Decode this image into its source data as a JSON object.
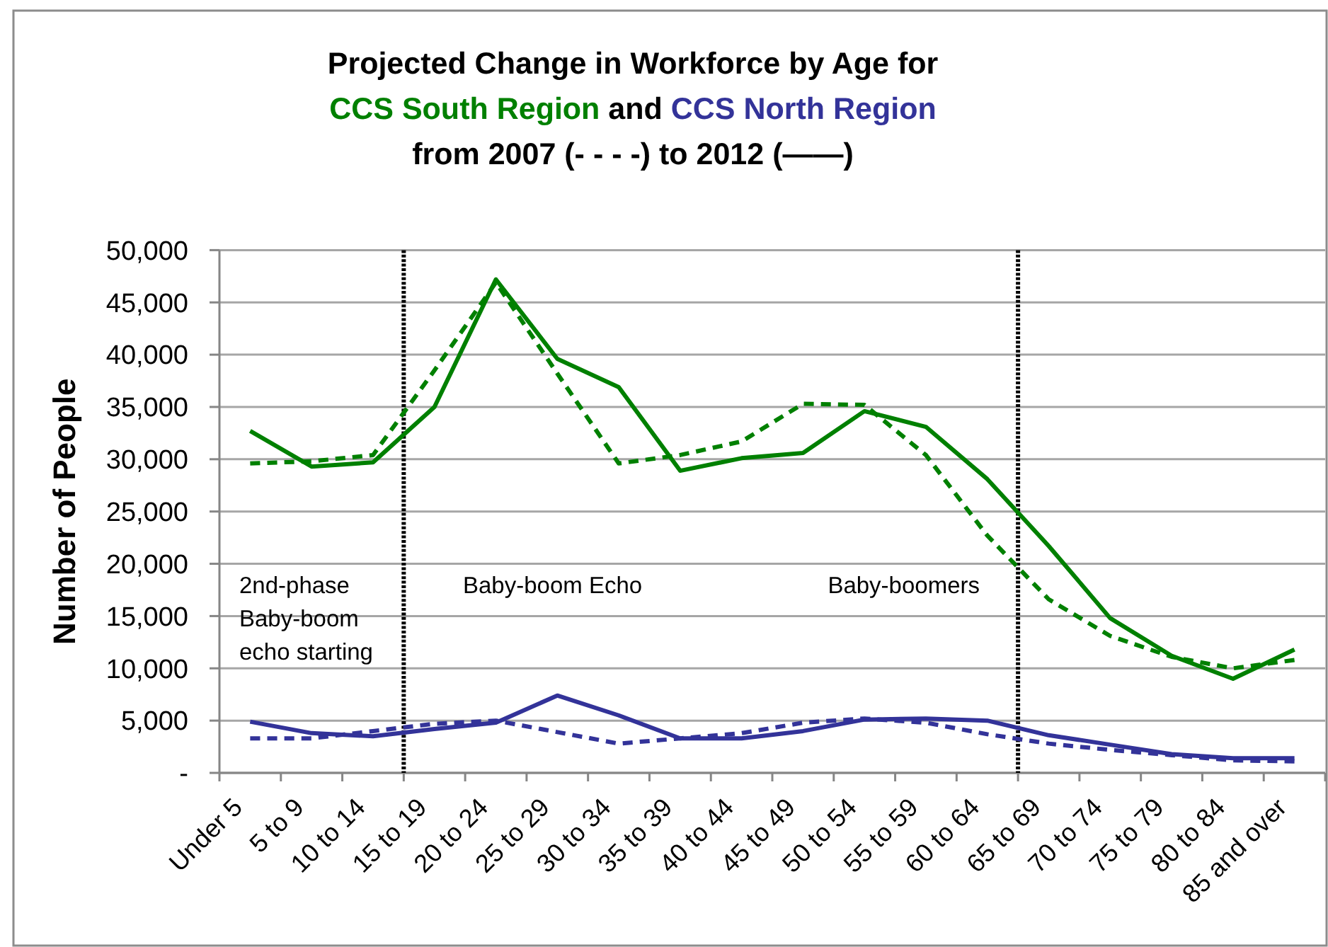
{
  "chart_data": {
    "type": "line",
    "title": "Projected Change in Workforce by Age for",
    "subtitle": "from 2007 (- - - -) to 2012 (——)",
    "ylabel": "Number of People",
    "categories": [
      "Under 5",
      "5 to 9",
      "10 to 14",
      "15 to 19",
      "20 to 24",
      "25 to 29",
      "30 to 34",
      "35 to 39",
      "40 to 44",
      "45 to 49",
      "50 to 54",
      "55 to 59",
      "60 to 64",
      "65 to 69",
      "70 to 74",
      "75 to 79",
      "80 to 84",
      "85 and over"
    ],
    "series": [
      {
        "name": "CCS South Region",
        "color": "#008000",
        "line_style": "solid",
        "values": [
          32700,
          29300,
          29700,
          35000,
          47200,
          39600,
          36900,
          28900,
          30100,
          30600,
          34600,
          33100,
          28100,
          21700,
          14800,
          11200,
          9000,
          11800
        ]
      },
      {
        "color": "#008000",
        "line_style": "dashed",
        "values": [
          29600,
          29800,
          30400,
          38500,
          46900,
          38200,
          29600,
          30400,
          31700,
          35300,
          35200,
          30400,
          22700,
          16600,
          13100,
          11100,
          10000,
          10800
        ]
      },
      {
        "name": "CCS North Region",
        "color": "#333399",
        "line_style": "solid",
        "values": [
          4900,
          3800,
          3500,
          4200,
          4800,
          7400,
          5500,
          3300,
          3300,
          4000,
          5100,
          5200,
          5000,
          3600,
          2700,
          1800,
          1400,
          1400
        ]
      },
      {
        "color": "#333399",
        "line_style": "dashed",
        "values": [
          3300,
          3300,
          4000,
          4700,
          5000,
          3900,
          2800,
          3300,
          3800,
          4800,
          5200,
          4800,
          3700,
          2800,
          2200,
          1700,
          1200,
          1100
        ]
      }
    ],
    "ylim": [
      0,
      50000
    ],
    "yticks": [
      {
        "value": 0,
        "label": "-"
      },
      {
        "value": 5000,
        "label": "5,000"
      },
      {
        "value": 10000,
        "label": "10,000"
      },
      {
        "value": 15000,
        "label": "15,000"
      },
      {
        "value": 20000,
        "label": "20,000"
      },
      {
        "value": 25000,
        "label": "25,000"
      },
      {
        "value": 30000,
        "label": "30,000"
      },
      {
        "value": 35000,
        "label": "35,000"
      },
      {
        "value": 40000,
        "label": "40,000"
      },
      {
        "value": 45000,
        "label": "45,000"
      },
      {
        "value": 50000,
        "label": "50,000"
      }
    ],
    "grid": "y",
    "marker": "none",
    "ref_lines": [
      {
        "axis": "x",
        "value": "15 to 19",
        "color": "#000000",
        "line_style": "dotted"
      },
      {
        "axis": "x",
        "value": "65 to 69",
        "color": "#000000",
        "line_style": "dotted"
      }
    ],
    "annotations": [
      "and",
      "2nd-phase\nBaby-boom\necho starting",
      "Baby-boom Echo",
      "Baby-boomers"
    ]
  }
}
